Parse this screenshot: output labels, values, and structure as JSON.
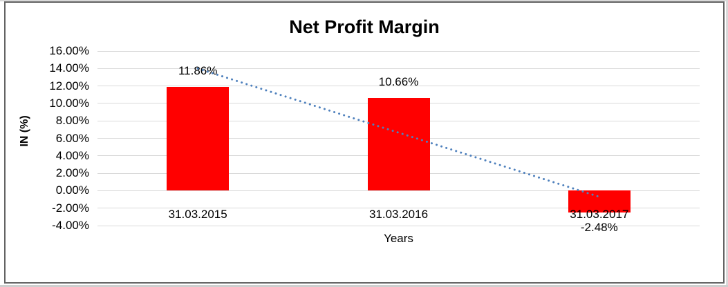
{
  "chart_data": {
    "type": "bar",
    "title": "Net Profit Margin",
    "xlabel": "Years",
    "ylabel": "IN (%)",
    "categories": [
      "31.03.2015",
      "31.03.2016",
      "31.03.2017"
    ],
    "values": [
      11.86,
      10.66,
      -2.48
    ],
    "data_labels": [
      "11.86%",
      "10.66%",
      "-2.48%"
    ],
    "y_ticks": [
      "16.00%",
      "14.00%",
      "12.00%",
      "10.00%",
      "8.00%",
      "6.00%",
      "4.00%",
      "2.00%",
      "0.00%",
      "-2.00%",
      "-4.00%"
    ],
    "y_tick_values": [
      16,
      14,
      12,
      10,
      8,
      6,
      4,
      2,
      0,
      -2,
      -4
    ],
    "ylim": [
      -4,
      16
    ],
    "grid": true,
    "legend": "none",
    "bar_color": "#FF0000",
    "gridline_color": "#D9D9D9",
    "text_color": "#000000",
    "border_color": "#636363",
    "trendline": {
      "style": "dotted",
      "color": "#4F81BD",
      "start_value": 14.0,
      "end_value": -0.7
    }
  }
}
